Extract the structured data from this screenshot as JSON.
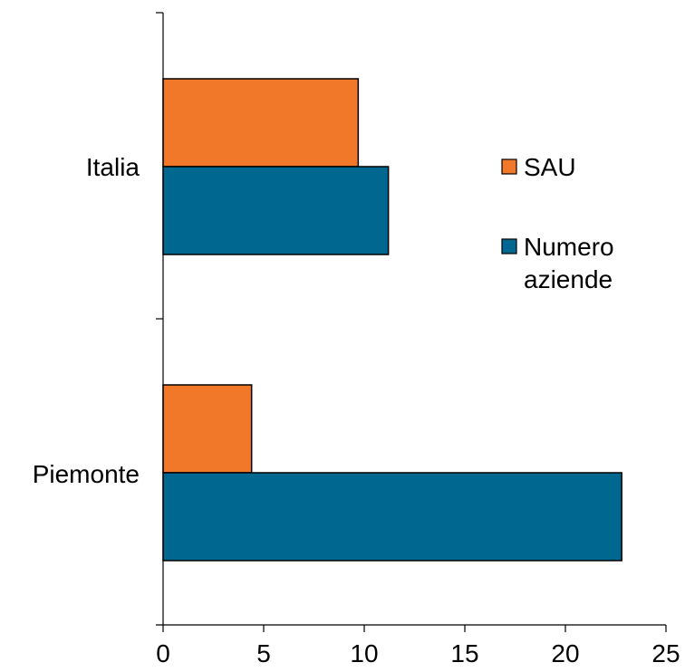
{
  "chart_data": {
    "type": "bar",
    "orientation": "horizontal",
    "categories": [
      "Italia",
      "Piemonte"
    ],
    "series": [
      {
        "name": "SAU",
        "color": "#f07828",
        "values": [
          9.7,
          4.4
        ]
      },
      {
        "name": "Numero aziende",
        "color": "#006890",
        "values": [
          11.2,
          22.8
        ]
      }
    ],
    "xlim": [
      0,
      25
    ],
    "x_ticks": [
      "0",
      "5",
      "10",
      "15",
      "20",
      "25"
    ],
    "legend_position": "right",
    "grid": false
  }
}
